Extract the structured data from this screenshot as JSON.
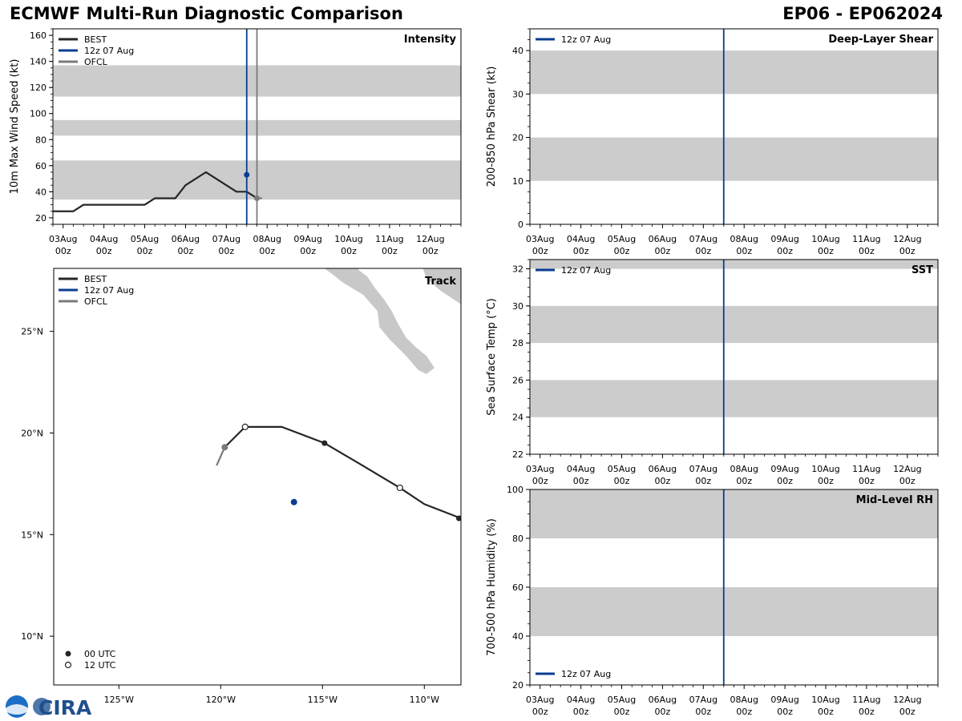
{
  "header": {
    "title": "ECMWF Multi-Run Diagnostic Comparison",
    "storm_id": "EP06 - EP062024"
  },
  "colors": {
    "best": "#262626",
    "run": "#0a3d91",
    "ofcl": "#7a7a7a",
    "band": "#cccccc",
    "land": "#c8c8c8"
  },
  "time_axis": {
    "tick_labels": [
      [
        "03Aug",
        "00z"
      ],
      [
        "04Aug",
        "00z"
      ],
      [
        "05Aug",
        "00z"
      ],
      [
        "06Aug",
        "00z"
      ],
      [
        "07Aug",
        "00z"
      ],
      [
        "08Aug",
        "00z"
      ],
      [
        "09Aug",
        "00z"
      ],
      [
        "10Aug",
        "00z"
      ],
      [
        "11Aug",
        "00z"
      ],
      [
        "12Aug",
        "00z"
      ]
    ],
    "range_hours": [
      -6,
      234
    ],
    "init_hour": 108,
    "ofcl_hour": 114
  },
  "logo_text": "CIRA",
  "chart_data": [
    {
      "type": "line",
      "id": "intensity",
      "title": "Intensity",
      "xlabel": "",
      "ylabel": "10m Max Wind Speed (kt)",
      "ylim": [
        15,
        165
      ],
      "yticks": [
        20,
        40,
        60,
        80,
        100,
        120,
        140,
        160
      ],
      "bands": [
        [
          34,
          64
        ],
        [
          83,
          95
        ],
        [
          113,
          137
        ]
      ],
      "legend": [
        "BEST",
        "12z 07 Aug",
        "OFCL"
      ],
      "series": [
        {
          "name": "BEST",
          "x": [
            -6,
            0,
            6,
            12,
            18,
            24,
            30,
            36,
            42,
            48,
            54,
            60,
            66,
            72,
            78,
            84,
            90,
            96,
            102,
            108,
            114
          ],
          "y": [
            25,
            25,
            25,
            30,
            30,
            30,
            30,
            30,
            30,
            30,
            35,
            35,
            35,
            45,
            50,
            55,
            50,
            45,
            40,
            40,
            35
          ]
        },
        {
          "name": "12z 07 Aug",
          "x": [
            108
          ],
          "y": [
            53
          ]
        },
        {
          "name": "OFCL",
          "x": [
            114,
            117
          ],
          "y": [
            35,
            35
          ]
        }
      ]
    },
    {
      "type": "line",
      "id": "shear",
      "title": "Deep-Layer Shear",
      "xlabel": "",
      "ylabel": "200-850 hPa Shear (kt)",
      "ylim": [
        0,
        45
      ],
      "yticks": [
        0,
        10,
        20,
        30,
        40
      ],
      "bands": [
        [
          10,
          20
        ],
        [
          30,
          40
        ]
      ],
      "legend": [
        "12z 07 Aug"
      ],
      "series": []
    },
    {
      "type": "line",
      "id": "sst",
      "title": "SST",
      "xlabel": "",
      "ylabel": "Sea Surface Temp (°C)",
      "ylim": [
        22,
        32.5
      ],
      "yticks": [
        22,
        24,
        26,
        28,
        30,
        32
      ],
      "bands": [
        [
          24,
          26
        ],
        [
          28,
          30
        ],
        [
          32,
          34
        ]
      ],
      "legend": [
        "12z 07 Aug"
      ],
      "series": []
    },
    {
      "type": "line",
      "id": "rh",
      "title": "Mid-Level RH",
      "xlabel": "",
      "ylabel": "700-500 hPa Humidity (%)",
      "ylim": [
        20,
        100
      ],
      "yticks": [
        20,
        40,
        60,
        80,
        100
      ],
      "bands": [
        [
          40,
          60
        ],
        [
          80,
          100
        ]
      ],
      "legend": [
        "12z 07 Aug"
      ],
      "series": []
    },
    {
      "type": "scatter",
      "id": "track",
      "title": "Track",
      "xlabel": "",
      "ylabel": "",
      "xlim": [
        -128.2,
        -108.2
      ],
      "ylim": [
        7.6,
        28.1
      ],
      "xticks": [
        -125,
        -120,
        -115,
        -110
      ],
      "xtick_labels": [
        "125°W",
        "120°W",
        "115°W",
        "110°W"
      ],
      "yticks": [
        10,
        15,
        20,
        25
      ],
      "ytick_labels": [
        "10°N",
        "15°N",
        "20°N",
        "25°N"
      ],
      "legend": [
        "BEST",
        "12z 07 Aug",
        "OFCL"
      ],
      "marker_legend": [
        "00 UTC",
        "12 UTC"
      ],
      "best_track": {
        "lon": [
          -108.2,
          -110.0,
          -111.2,
          -113.2,
          -114.9,
          -117.0,
          -118.8,
          -119.8
        ],
        "lat": [
          15.8,
          16.5,
          17.3,
          18.5,
          19.5,
          20.3,
          20.3,
          19.3
        ]
      },
      "best_points_00utc": [
        [
          -108.3,
          15.8
        ],
        [
          -114.9,
          19.5
        ]
      ],
      "best_points_12utc": [
        [
          -111.2,
          17.3
        ],
        [
          -118.8,
          20.3
        ]
      ],
      "ofcl_track": {
        "lon": [
          -119.8,
          -120.2
        ],
        "lat": [
          19.3,
          18.4
        ]
      },
      "ofcl_start": [
        -119.8,
        19.3
      ],
      "run_point": [
        -116.4,
        16.6
      ]
    }
  ]
}
